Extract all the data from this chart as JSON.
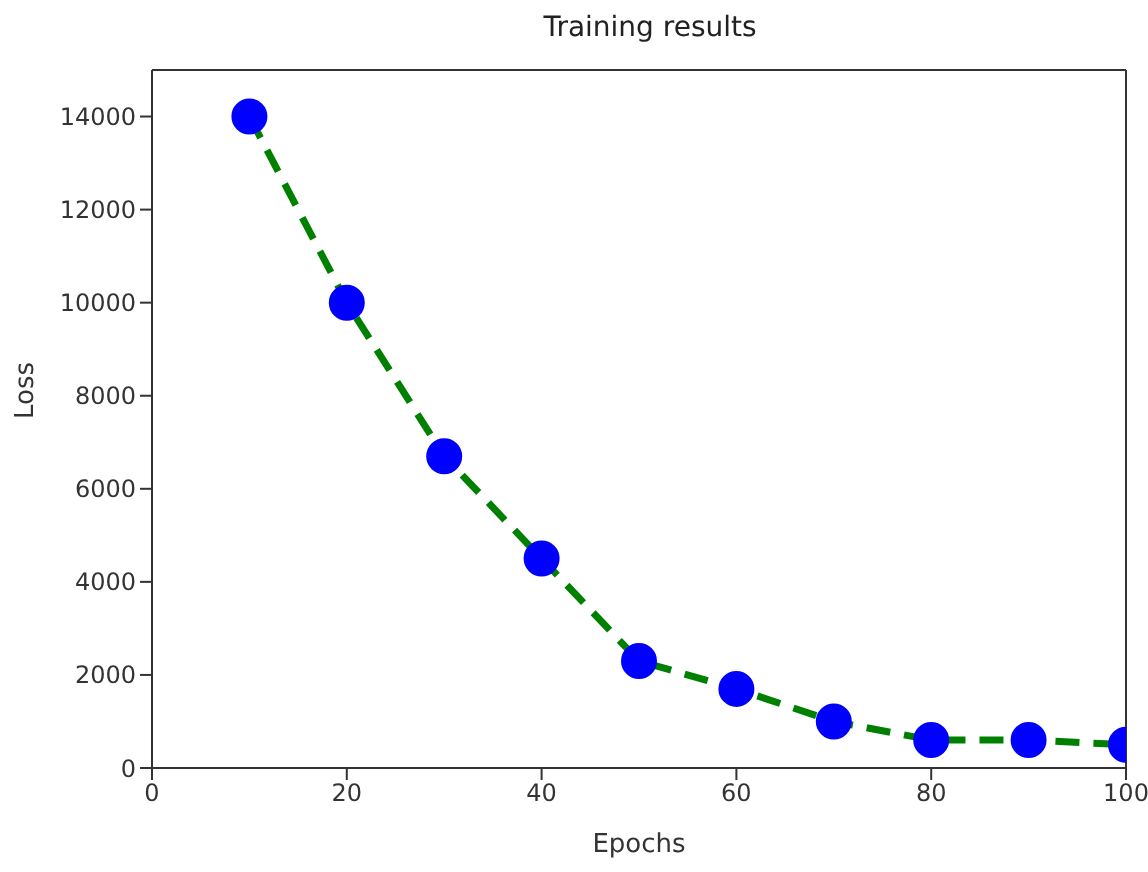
{
  "chart_data": {
    "type": "line",
    "title": "Training results",
    "xlabel": "Epochs",
    "ylabel": "Loss",
    "x": [
      10,
      20,
      30,
      40,
      50,
      60,
      70,
      80,
      90,
      100
    ],
    "series": [
      {
        "color": "#008000",
        "colors": [
          "#0000ff",
          "#0000ff",
          "#0000ff",
          "#0000ff",
          "#0000ff",
          "#0000ff",
          "#0000ff",
          "#0000ff",
          "#0000ff",
          "#0000ff"
        ],
        "values": [
          14000,
          10000,
          6700,
          4500,
          2300,
          1700,
          1000,
          600,
          600,
          500
        ]
      }
    ],
    "xlim": [
      0,
      100
    ],
    "xticks": [
      0,
      20,
      40,
      60,
      80,
      100
    ],
    "ylim": [
      0,
      15000
    ],
    "yticks": [
      0,
      2000,
      4000,
      6000,
      8000,
      10000,
      12000,
      14000
    ],
    "marker": "circle",
    "line_style": "dashed",
    "grid": false,
    "legend": false
  }
}
